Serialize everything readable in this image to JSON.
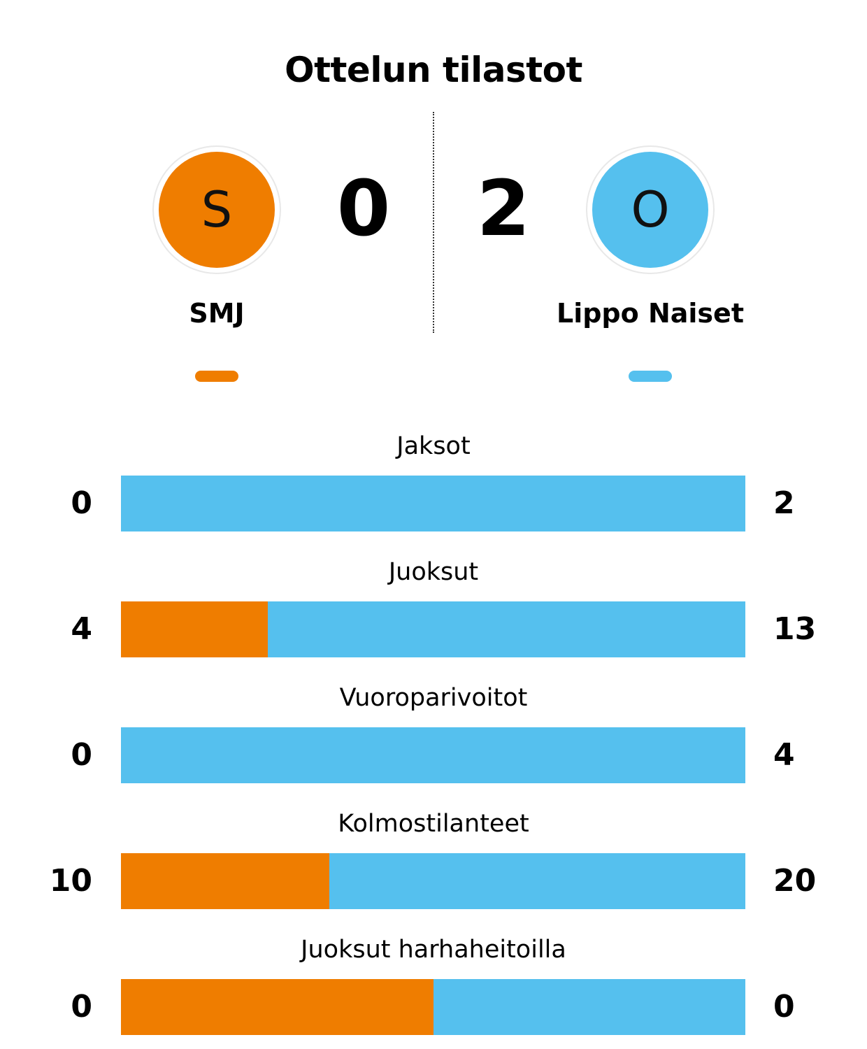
{
  "title": "Ottelun tilastot",
  "colors": {
    "home": "#ef7d00",
    "away": "#55c0ee"
  },
  "home": {
    "initial": "S",
    "score": "0",
    "name": "SMJ"
  },
  "away": {
    "initial": "O",
    "score": "2",
    "name": "Lippo Naiset"
  },
  "chart_data": {
    "type": "bar",
    "title": "Ottelun tilastot",
    "series": [
      {
        "name": "SMJ",
        "values": [
          0,
          4,
          0,
          10,
          0
        ]
      },
      {
        "name": "Lippo Naiset",
        "values": [
          2,
          13,
          4,
          20,
          0
        ]
      }
    ],
    "categories": [
      "Jaksot",
      "Juoksut",
      "Vuoroparivoitot",
      "Kolmostilanteet",
      "Juoksut harhaheitoilla"
    ],
    "stats": [
      {
        "label": "Jaksot",
        "home": "0",
        "away": "2"
      },
      {
        "label": "Juoksut",
        "home": "4",
        "away": "13"
      },
      {
        "label": "Vuoroparivoitot",
        "home": "0",
        "away": "4"
      },
      {
        "label": "Kolmostilanteet",
        "home": "10",
        "away": "20"
      },
      {
        "label": "Juoksut harhaheitoilla",
        "home": "0",
        "away": "0"
      }
    ]
  }
}
